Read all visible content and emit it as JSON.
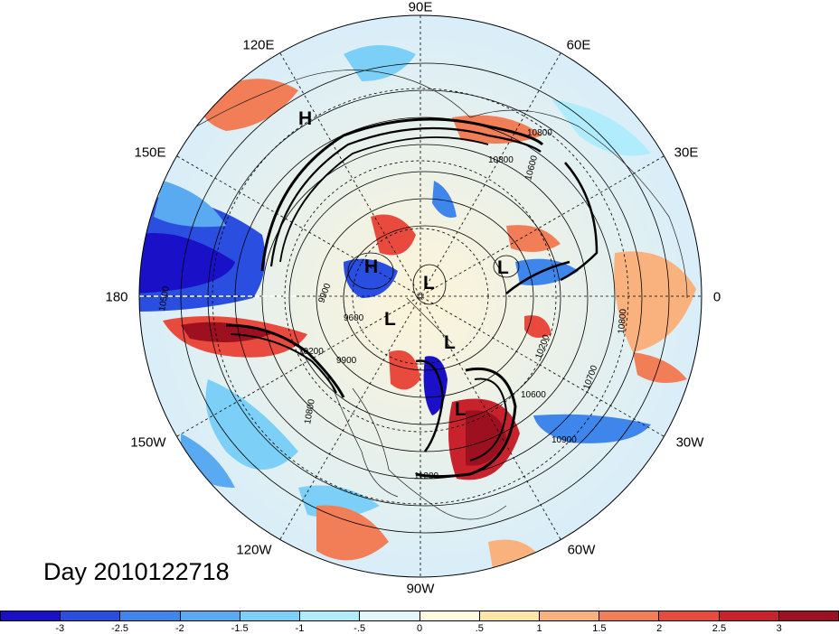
{
  "date_label": "Day 2010122718",
  "longitude_labels": {
    "top": "90E",
    "top_left": "120E",
    "top_right": "60E",
    "left_upper": "150E",
    "right_upper": "30E",
    "left": "180",
    "right": "0",
    "left_lower": "150W",
    "right_lower": "30W",
    "bottom_left": "120W",
    "bottom_right": "60W",
    "bottom": "90W"
  },
  "pressure_systems": [
    {
      "label": "H"
    },
    {
      "label": "H"
    },
    {
      "label": "L"
    },
    {
      "label": "L"
    },
    {
      "label": "L"
    },
    {
      "label": "L"
    },
    {
      "label": "L"
    }
  ],
  "contour_labels": [
    "10800",
    "10600",
    "10500",
    "9900",
    "9600",
    "9900",
    "10200",
    "10200",
    "10700",
    "10600",
    "10800",
    "10900",
    "11200",
    "10800",
    "10800"
  ],
  "colorbar": {
    "colors": [
      "#1a10c8",
      "#2a4ee0",
      "#3f86ec",
      "#5aaaf2",
      "#7cd0f8",
      "#b0ecfc",
      "#e2f8fc",
      "#fffae0",
      "#fde6a8",
      "#f9b27e",
      "#f27e58",
      "#e84a3e",
      "#c8232c",
      "#9c1020"
    ],
    "ticks": [
      "-3",
      "-2.5",
      "-2",
      "-1.5",
      "-1",
      "-.5",
      "0",
      ".5",
      "1",
      "1.5",
      "2",
      "2.5",
      "3"
    ]
  }
}
